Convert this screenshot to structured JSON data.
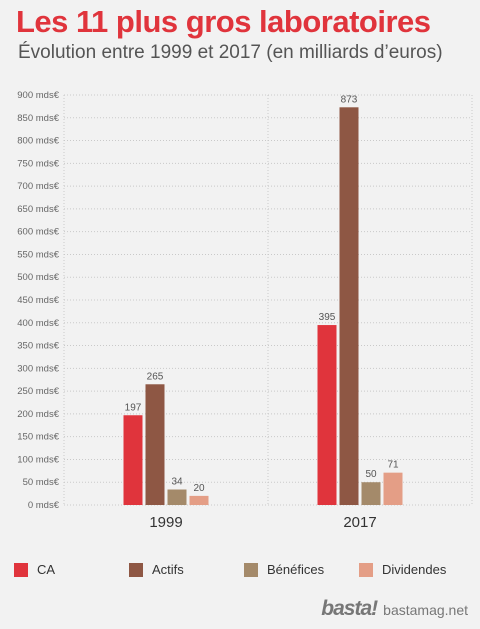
{
  "title": "Les 11 plus gros laboratoires",
  "subtitle": "Évolution entre 1999 et 2017 (en milliards d’euros)",
  "chart_data": {
    "type": "bar",
    "categories": [
      "1999",
      "2017"
    ],
    "series": [
      {
        "name": "CA",
        "values": [
          197,
          395
        ],
        "color": "#e0343c"
      },
      {
        "name": "Actifs",
        "values": [
          265,
          873
        ],
        "color": "#8e5744"
      },
      {
        "name": "Bénéfices",
        "values": [
          34,
          50
        ],
        "color": "#a48a6a"
      },
      {
        "name": "Dividendes",
        "values": [
          20,
          71
        ],
        "color": "#e49e86"
      }
    ],
    "ylim": [
      0,
      900
    ],
    "y_ticks": [
      "0 mds€",
      "50 mds€",
      "100 mds€",
      "150 mds€",
      "200 mds€",
      "250 mds€",
      "300 mds€",
      "350 mds€",
      "400 mds€",
      "450 mds€",
      "500 mds€",
      "550 mds€",
      "600 mds€",
      "650 mds€",
      "700 mds€",
      "750 mds€",
      "800 mds€",
      "850 mds€",
      "900 mds€"
    ],
    "grid": true,
    "legend_position": "bottom"
  },
  "brand": {
    "logo": "basta!",
    "site": "bastamag.net"
  }
}
